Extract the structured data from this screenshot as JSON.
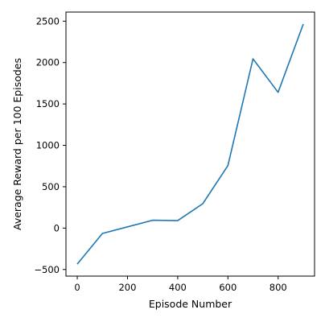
{
  "chart_data": {
    "type": "line",
    "title": "",
    "xlabel": "Episode Number",
    "ylabel": "Average Reward per 100 Episodes",
    "x": [
      0,
      100,
      200,
      300,
      400,
      500,
      600,
      700,
      800,
      900
    ],
    "series": [
      {
        "values": [
          -435,
          -65,
          15,
          95,
          90,
          295,
          755,
          2045,
          1640,
          2465
        ],
        "color": "#1f77b4"
      }
    ],
    "xlim": [
      -45,
      945
    ],
    "ylim": [
      -580,
      2610
    ],
    "xticks": [
      0,
      200,
      400,
      600,
      800
    ],
    "xtick_labels": [
      "0",
      "200",
      "400",
      "600",
      "800"
    ],
    "yticks": [
      -500,
      0,
      500,
      1000,
      1500,
      2000,
      2500
    ],
    "ytick_labels": [
      "−500",
      "0",
      "500",
      "1000",
      "1500",
      "2000",
      "2500"
    ],
    "grid": false,
    "legend": false
  }
}
